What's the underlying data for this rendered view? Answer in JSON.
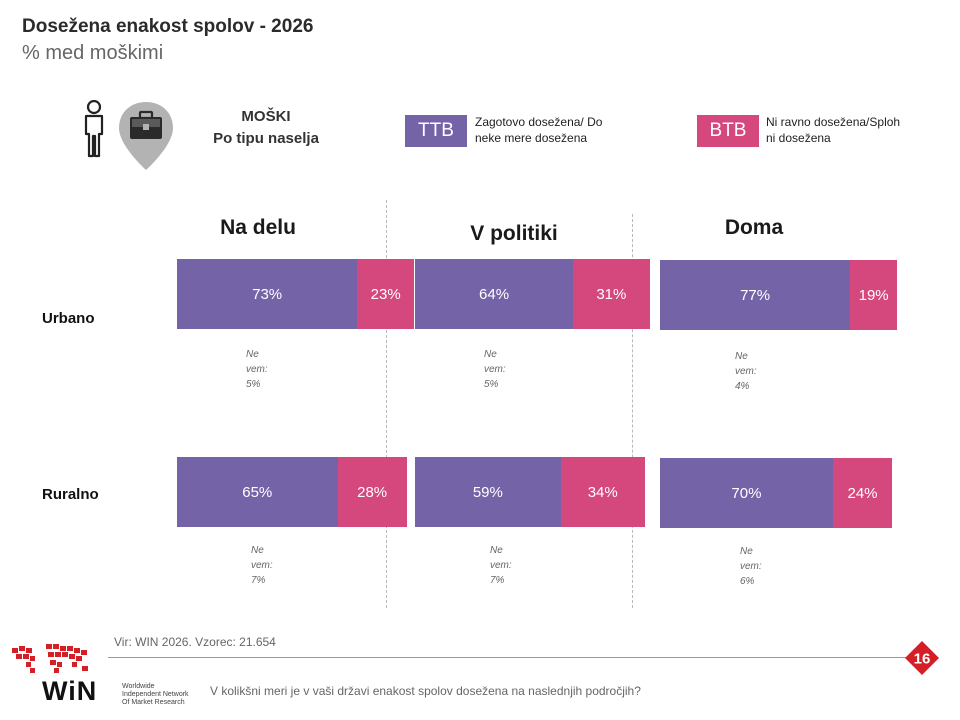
{
  "header": {
    "title": "Dosežena enakost spolov - 2026",
    "subtitle": "% med moškimi"
  },
  "group": {
    "line1": "MOŠKI",
    "line2": "Po tipu naselja",
    "person_icon": "person-icon",
    "pin_icon": "briefcase-pin-icon"
  },
  "legend": {
    "ttb": {
      "label": "TTB",
      "text_line1": "Zagotovo dosežena/ Do",
      "text_line2": "neke mere dosežena",
      "color": "#7563a8"
    },
    "btb": {
      "label": "BTB",
      "text_line1": "Ni ravno dosežena/Sploh",
      "text_line2": "ni dosežena",
      "color": "#d5487d"
    }
  },
  "chart_data": {
    "type": "bar",
    "stacked": true,
    "orientation": "horizontal",
    "panels": [
      "Na delu",
      "V politiki",
      "Doma"
    ],
    "rows": [
      "Urbano",
      "Ruralno"
    ],
    "series": [
      {
        "name": "TTB",
        "values": [
          [
            73,
            65
          ],
          [
            64,
            59
          ],
          [
            77,
            70
          ]
        ]
      },
      {
        "name": "BTB",
        "values": [
          [
            23,
            28
          ],
          [
            31,
            34
          ],
          [
            19,
            24
          ]
        ]
      }
    ],
    "dont_know": [
      [
        5,
        7
      ],
      [
        5,
        7
      ],
      [
        4,
        6
      ]
    ],
    "dont_know_label": [
      "Ne",
      "vem:"
    ],
    "unit": "%"
  },
  "footer": {
    "source": "Vir: WIN 2026.  Vzorec: 21.654",
    "question": "V kolikšni meri je v vaši državi enakost spolov dosežena na naslednjih področjih?",
    "page_number": "16",
    "logo_text": "WiN",
    "logo_tagline_1": "Worldwide",
    "logo_tagline_2": "Independent Network",
    "logo_tagline_3": "Of Market Research"
  }
}
